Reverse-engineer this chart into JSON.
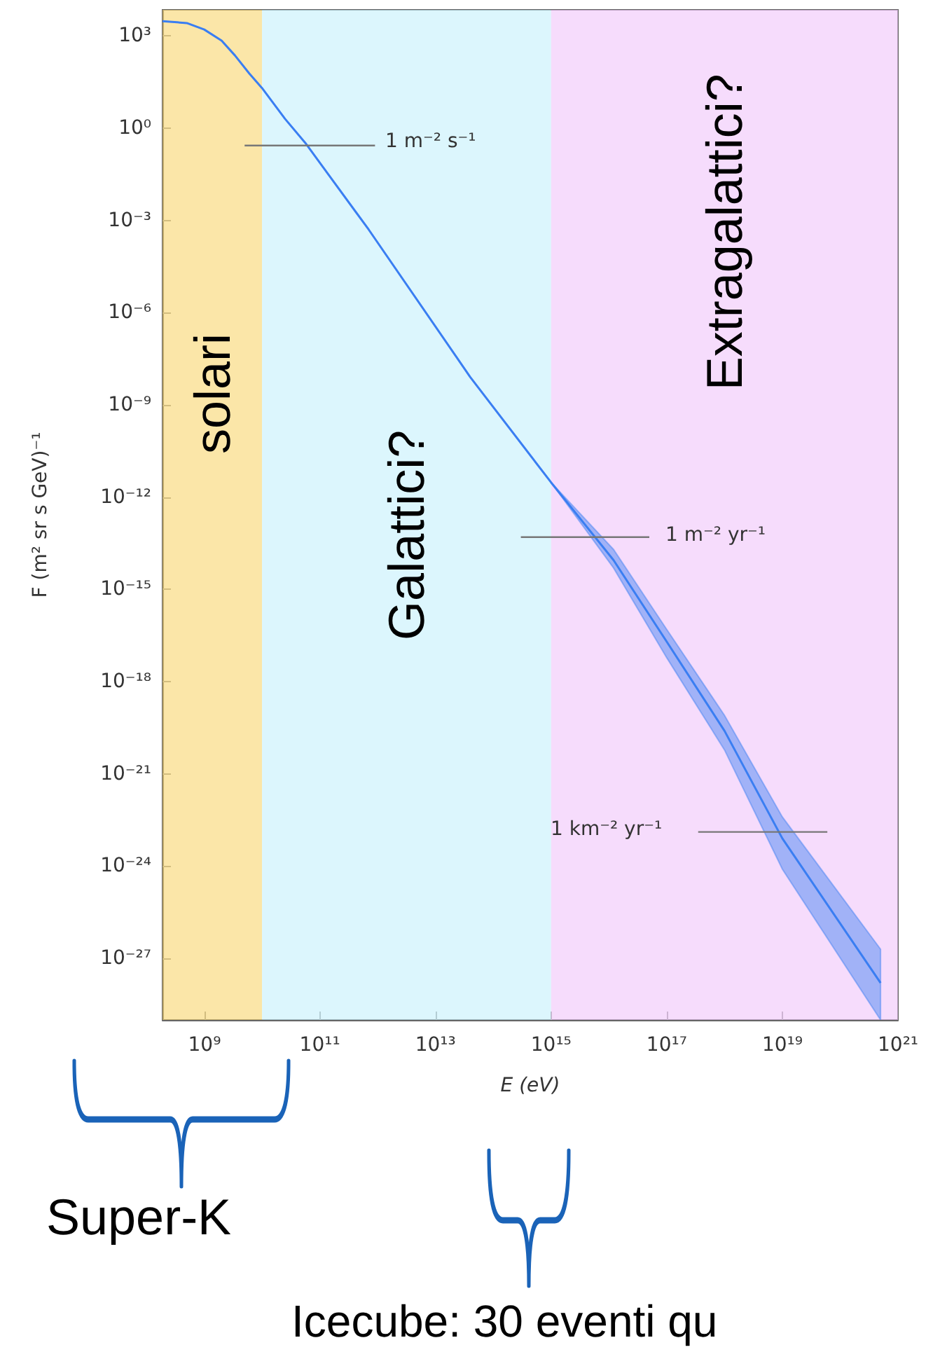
{
  "chart_data": {
    "type": "line",
    "xlabel": "E (eV)",
    "ylabel": "F (m² sr s GeV)⁻¹",
    "log": "xy",
    "grid": false,
    "xlim": [
      190000000.0,
      1e+21
    ],
    "ylim": [
      1e-29,
      7000.0
    ],
    "xticks": [
      {
        "value": 1000000000.0,
        "label": "10⁹"
      },
      {
        "value": 100000000000.0,
        "label": "10¹¹"
      },
      {
        "value": 10000000000000.0,
        "label": "10¹³"
      },
      {
        "value": 1000000000000000.0,
        "label": "10¹⁵"
      },
      {
        "value": 1e+17,
        "label": "10¹⁷"
      },
      {
        "value": 1e+19,
        "label": "10¹⁹"
      },
      {
        "value": 1e+21,
        "label": "10²¹"
      }
    ],
    "yticks": [
      {
        "value": 1000.0,
        "label": "10³"
      },
      {
        "value": 1,
        "label": "10⁰"
      },
      {
        "value": 0.001,
        "label": "10⁻³"
      },
      {
        "value": 1e-06,
        "label": "10⁻⁶"
      },
      {
        "value": 1e-09,
        "label": "10⁻⁹"
      },
      {
        "value": 1e-12,
        "label": "10⁻¹²"
      },
      {
        "value": 1e-15,
        "label": "10⁻¹⁵"
      },
      {
        "value": 1e-18,
        "label": "10⁻¹⁸"
      },
      {
        "value": 1e-21,
        "label": "10⁻²¹"
      },
      {
        "value": 1e-24,
        "label": "10⁻²⁴"
      },
      {
        "value": 1e-27,
        "label": "10⁻²⁷"
      }
    ],
    "series": [
      {
        "color": "#3a7ef2",
        "x": [
          190000000.0,
          500000000.0,
          1000000000.0,
          2000000000.0,
          3400000000.0,
          6000000000.0,
          10000000000.0,
          25000000000.0,
          56000000000.0,
          700000000000.0,
          40000000000000.0,
          1000000000000000.0,
          1.2e+16,
          1e+17,
          1e+18,
          1e+19,
          5e+20
        ],
        "values": [
          3000.0,
          2600.0,
          1600.0,
          700.0,
          230.0,
          60.0,
          20.0,
          2,
          0.33,
          0.0005,
          8e-09,
          3e-12,
          9e-15,
          2e-17,
          2.5e-20,
          8e-24,
          1.6e-28
        ],
        "lower": [
          3000.0,
          2600.0,
          1600.0,
          700.0,
          230.0,
          60.0,
          20.0,
          2,
          0.33,
          0.0005,
          8e-09,
          3e-12,
          5e-15,
          6e-18,
          6e-21,
          8e-25,
          1e-29
        ],
        "upper": [
          3000.0,
          2600.0,
          1600.0,
          700.0,
          230.0,
          60.0,
          20.0,
          2,
          0.33,
          0.0005,
          8e-09,
          3e-12,
          2e-14,
          5e-17,
          8e-20,
          4e-23,
          2e-27
        ]
      },
      {
        "color": "#777777",
        "x": [
          5000000000.0,
          900000000000.0
        ],
        "values": [
          0.27,
          0.27
        ]
      },
      {
        "color": "#777777",
        "x": [
          300000000000000.0,
          5e+16
        ],
        "values": [
          5e-14,
          5e-14
        ]
      },
      {
        "color": "#777777",
        "x": [
          3.5e+17,
          6e+19
        ],
        "values": [
          1.3e-23,
          1.3e-23
        ]
      }
    ],
    "bands": [
      {
        "axis": "x",
        "from": 190000000.0,
        "to": 10000000000.0,
        "label": "solari",
        "color": "#f9d56e"
      },
      {
        "axis": "x",
        "from": 10000000000.0,
        "to": 1000000000000000.0,
        "label": "Galattici?",
        "color": "#c4f0fb"
      },
      {
        "axis": "x",
        "from": 1000000000000000.0,
        "to": 1e+21,
        "label": "Extragalattici?",
        "color": "#f0c4fa"
      }
    ],
    "annotations": [
      "1 m⁻² s⁻¹",
      "1 m⁻² yr⁻¹",
      "1 km⁻² yr⁻¹",
      "Super-K",
      "Icecube: 30 eventi qu"
    ]
  }
}
